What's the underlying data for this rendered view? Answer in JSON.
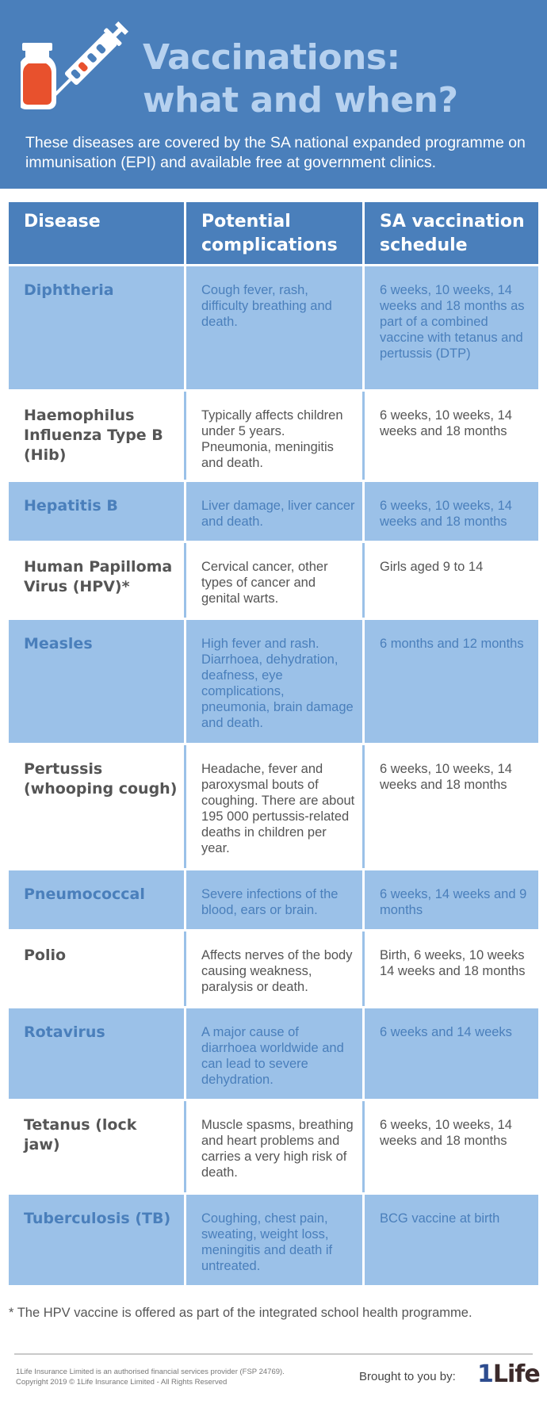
{
  "header": {
    "title_line1": "Vaccinations:",
    "title_line2": "what and when?",
    "intro": "These diseases are covered by the SA national expanded programme on immunisation (EPI) and available free at government clinics.",
    "illustration_icons": [
      "vaccine-bottle-icon",
      "syringe-icon"
    ],
    "colors": {
      "banner": "#4a7fbb",
      "title": "#b6d1ef",
      "bottle": "#e8512d"
    }
  },
  "table": {
    "headers": {
      "disease": "Disease",
      "complications": "Potential complications",
      "schedule": "SA vaccination schedule"
    },
    "rows": [
      {
        "disease": "Diphtheria",
        "complications": "Cough fever, rash, difficulty breathing and death.",
        "schedule": "6 weeks, 10 weeks, 14 weeks and 18 months as part of a combined vaccine with tetanus and pertussis (DTP)"
      },
      {
        "disease": "Haemophilus Influenza Type B (Hib)",
        "complications": "Typically affects children under 5 years. Pneumonia, meningitis and death.",
        "schedule": "6 weeks, 10 weeks, 14 weeks and 18 months"
      },
      {
        "disease": "Hepatitis B",
        "complications": "Liver damage, liver cancer and death.",
        "schedule": "6 weeks, 10 weeks, 14 weeks and 18 months"
      },
      {
        "disease": "Human Papilloma Virus (HPV)*",
        "complications": "Cervical cancer, other types of cancer and genital warts.",
        "schedule": "Girls aged 9 to 14"
      },
      {
        "disease": "Measles",
        "complications": "High fever and rash. Diarrhoea, dehydration, deafness, eye complications, pneumonia, brain damage and death.",
        "schedule": "6 months and 12 months"
      },
      {
        "disease": "Pertussis (whooping cough)",
        "complications": "Headache, fever and paroxysmal bouts of coughing. There are about 195 000 pertussis-related deaths in children per year.",
        "schedule": "6 weeks, 10 weeks, 14 weeks and 18 months"
      },
      {
        "disease": "Pneumococcal",
        "complications": "Severe infections of the blood, ears or brain.",
        "schedule": "6 weeks, 14 weeks and 9 months"
      },
      {
        "disease": "Polio",
        "complications": "Affects nerves of the body causing weakness, paralysis or death.",
        "schedule": "Birth, 6 weeks, 10 weeks 14 weeks and 18 months"
      },
      {
        "disease": "Rotavirus",
        "complications": "A major cause of diarrhoea worldwide and can lead to severe dehydration.",
        "schedule": "6 weeks and 14 weeks"
      },
      {
        "disease": "Tetanus (lock jaw)",
        "complications": "Muscle spasms, breathing and heart problems and carries a very high risk of death.",
        "schedule": "6 weeks, 10 weeks, 14 weeks and 18 months"
      },
      {
        "disease": "Tuberculosis (TB)",
        "complications": "Coughing, chest pain, sweating, weight loss, meningitis and death if untreated.",
        "schedule": "BCG vaccine at birth"
      }
    ],
    "colors": {
      "header": "#4a7fbb",
      "shaded_row": "#9bc1e8",
      "shaded_text": "#4a7fbb",
      "plain_text": "#555555"
    }
  },
  "footnote": "* The HPV vaccine is offered as part of the integrated school health programme.",
  "footer": {
    "legal_line1": "1Life Insurance Limited is an authorised financial services provider (FSP 24769).",
    "legal_line2": "Copyright 2019 © 1Life Insurance Limited - All Rights Reserved",
    "brought_by": "Brought to you by:",
    "logo_one": "1",
    "logo_rest": "Life"
  }
}
